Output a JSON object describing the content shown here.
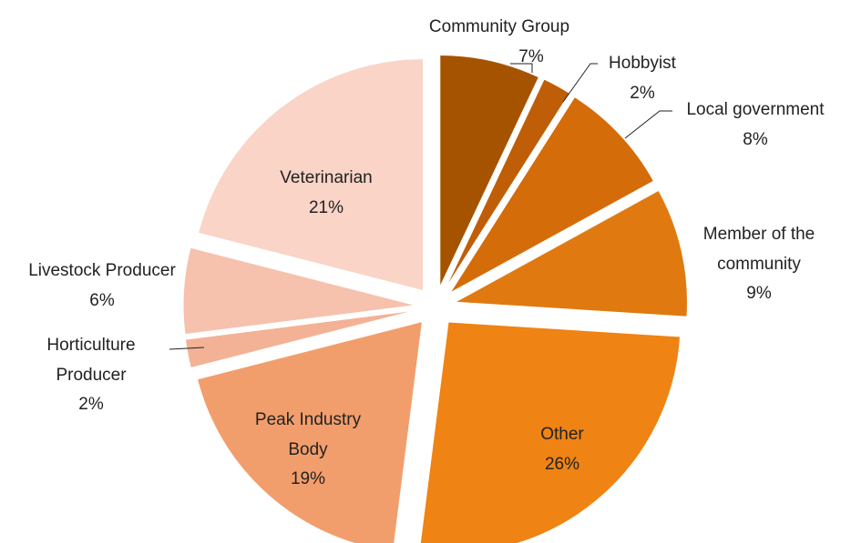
{
  "chart_data": {
    "type": "pie",
    "categories": [
      "Community Group",
      "Hobbyist",
      "Local government",
      "Member of the community",
      "Other",
      "Peak Industry Body",
      "Horticulture Producer",
      "Livestock Producer",
      "Veterinarian"
    ],
    "values": [
      7,
      2,
      8,
      9,
      26,
      19,
      2,
      6,
      21
    ],
    "value_labels": [
      "7%",
      "2%",
      "8%",
      "9%",
      "26%",
      "19%",
      "2%",
      "6%",
      "21%"
    ],
    "colors": [
      "#a65300",
      "#bf5e06",
      "#d46c0a",
      "#e07a10",
      "#ef8313",
      "#f29e6c",
      "#f3b295",
      "#f6c1ad",
      "#f9d4c7"
    ]
  }
}
